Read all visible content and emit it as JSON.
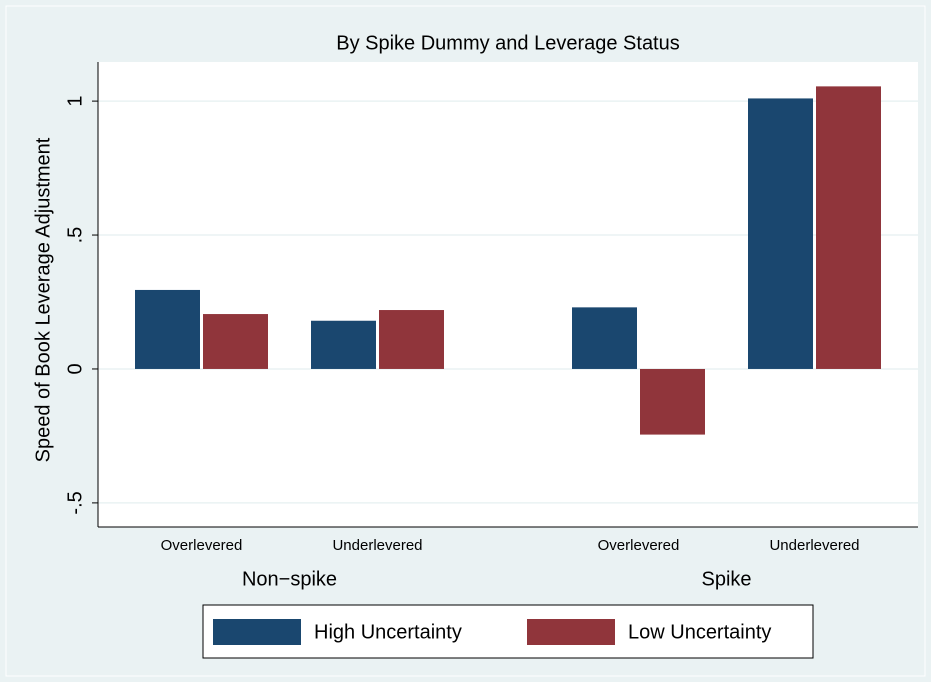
{
  "chart_data": {
    "type": "bar",
    "title": "By Spike Dummy and Leverage Status",
    "y_label": "Speed of Book Leverage Adjustment",
    "categories": [
      "Overlevered",
      "Underlevered",
      "Overlevered",
      "Underlevered"
    ],
    "groups": [
      "Non−spike",
      "Spike"
    ],
    "series": [
      {
        "name": "High Uncertainty",
        "color": "#1a476f",
        "values": [
          0.295,
          0.18,
          0.23,
          1.01
        ]
      },
      {
        "name": "Low Uncertainty",
        "color": "#90353b",
        "values": [
          0.205,
          0.22,
          -0.245,
          1.055
        ]
      }
    ],
    "ylim": [
      -0.59,
      1.146
    ],
    "yticks": [
      {
        "value": -0.5,
        "label": "-.5"
      },
      0,
      {
        "value": 0.5,
        "label": ".5"
      },
      1
    ],
    "grid": true,
    "legend": "bottom"
  }
}
